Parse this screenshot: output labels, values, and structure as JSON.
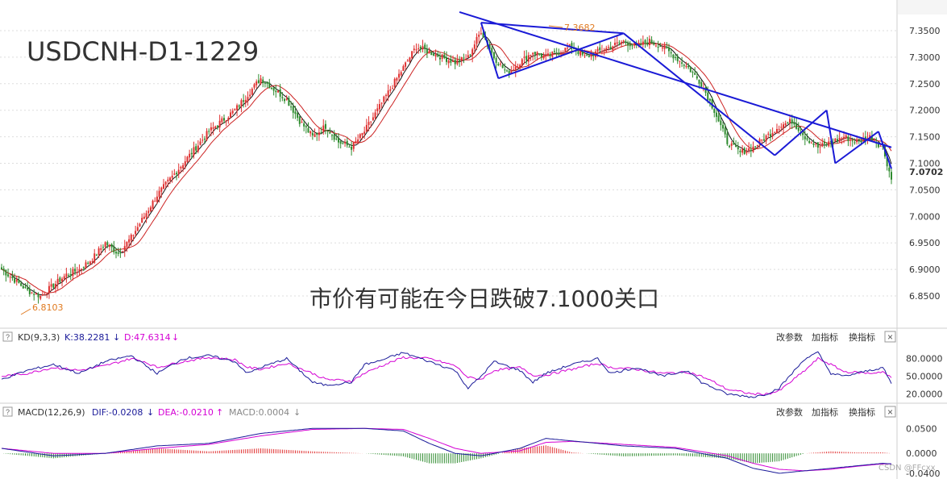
{
  "chart_data": [
    {
      "type": "candlestick",
      "title": "USDCNH-D1-1229",
      "annotation": "市价有可能在今日跌破7.1000关口",
      "price_high_label": "7.3682",
      "price_low_label": "6.8103",
      "last_price_label": "7.0702",
      "ylim": [
        6.81,
        7.37
      ],
      "y_ticks": [
        "7.3500",
        "7.3000",
        "7.2500",
        "7.2000",
        "7.1500",
        "7.1000",
        "7.0500",
        "7.0000",
        "6.9500",
        "6.9000",
        "6.8500"
      ],
      "y_tick_values": [
        7.35,
        7.3,
        7.25,
        7.2,
        7.15,
        7.1,
        7.05,
        7.0,
        6.95,
        6.9,
        6.85
      ],
      "close_path": [
        [
          0,
          6.9
        ],
        [
          6,
          6.88
        ],
        [
          12,
          6.86
        ],
        [
          18,
          6.85
        ],
        [
          24,
          6.87
        ],
        [
          30,
          6.89
        ],
        [
          36,
          6.9
        ],
        [
          42,
          6.92
        ],
        [
          48,
          6.95
        ],
        [
          54,
          6.93
        ],
        [
          60,
          6.96
        ],
        [
          66,
          7.0
        ],
        [
          72,
          7.04
        ],
        [
          78,
          7.07
        ],
        [
          84,
          7.1
        ],
        [
          90,
          7.13
        ],
        [
          96,
          7.16
        ],
        [
          102,
          7.18
        ],
        [
          108,
          7.2
        ],
        [
          114,
          7.23
        ],
        [
          120,
          7.26
        ],
        [
          126,
          7.24
        ],
        [
          132,
          7.22
        ],
        [
          138,
          7.18
        ],
        [
          144,
          7.15
        ],
        [
          150,
          7.17
        ],
        [
          156,
          7.14
        ],
        [
          162,
          7.13
        ],
        [
          168,
          7.16
        ],
        [
          174,
          7.2
        ],
        [
          180,
          7.24
        ],
        [
          186,
          7.28
        ],
        [
          192,
          7.32
        ],
        [
          198,
          7.31
        ],
        [
          204,
          7.3
        ],
        [
          210,
          7.29
        ],
        [
          216,
          7.3
        ],
        [
          222,
          7.35
        ],
        [
          228,
          7.3
        ],
        [
          234,
          7.27
        ],
        [
          240,
          7.29
        ],
        [
          246,
          7.31
        ],
        [
          252,
          7.3
        ],
        [
          258,
          7.31
        ],
        [
          264,
          7.32
        ],
        [
          270,
          7.3
        ],
        [
          276,
          7.31
        ],
        [
          282,
          7.32
        ],
        [
          288,
          7.33
        ],
        [
          294,
          7.32
        ],
        [
          300,
          7.33
        ],
        [
          306,
          7.32
        ],
        [
          312,
          7.3
        ],
        [
          318,
          7.28
        ],
        [
          324,
          7.25
        ],
        [
          330,
          7.2
        ],
        [
          336,
          7.14
        ],
        [
          342,
          7.12
        ],
        [
          348,
          7.13
        ],
        [
          354,
          7.15
        ],
        [
          360,
          7.17
        ],
        [
          366,
          7.18
        ],
        [
          372,
          7.15
        ],
        [
          378,
          7.13
        ],
        [
          384,
          7.14
        ],
        [
          390,
          7.15
        ],
        [
          396,
          7.14
        ],
        [
          402,
          7.15
        ],
        [
          408,
          7.13
        ],
        [
          412,
          7.07
        ]
      ],
      "trendlines": [
        {
          "from": [
            212,
            7.385
          ],
          "to": [
            412,
            7.13
          ]
        },
        {
          "from": [
            222,
            7.365
          ],
          "to": [
            230,
            7.26
          ]
        },
        {
          "from": [
            230,
            7.26
          ],
          "to": [
            288,
            7.345
          ]
        },
        {
          "from": [
            222,
            7.365
          ],
          "to": [
            288,
            7.345
          ]
        },
        {
          "from": [
            288,
            7.345
          ],
          "to": [
            358,
            7.115
          ]
        },
        {
          "from": [
            358,
            7.115
          ],
          "to": [
            382,
            7.2
          ]
        },
        {
          "from": [
            382,
            7.2
          ],
          "to": [
            386,
            7.1
          ]
        },
        {
          "from": [
            386,
            7.1
          ],
          "to": [
            406,
            7.16
          ]
        },
        {
          "from": [
            406,
            7.16
          ],
          "to": [
            412,
            7.09
          ]
        }
      ],
      "colors": {
        "up": "#e03030",
        "down": "#2e8b2e",
        "ma_short": "#111111",
        "ma_long": "#cc2222",
        "trendline": "#1a1ad6",
        "price_label": "#e07a20"
      }
    },
    {
      "type": "line",
      "title": "KD(9,3,3)",
      "legend": [
        {
          "name": "K",
          "value_label": "K:38.2281",
          "arrow": "↓",
          "color": "#1a1a99"
        },
        {
          "name": "D",
          "value_label": "D:47.6314",
          "arrow": "↓",
          "color": "#d400d4"
        }
      ],
      "y_ticks": [
        "80.0000",
        "50.0000",
        "20.0000"
      ],
      "y_tick_values": [
        80,
        50,
        20
      ],
      "ylim": [
        10,
        100
      ],
      "k_path": [
        [
          0,
          45
        ],
        [
          12,
          60
        ],
        [
          24,
          70
        ],
        [
          36,
          55
        ],
        [
          48,
          75
        ],
        [
          60,
          85
        ],
        [
          66,
          70
        ],
        [
          72,
          55
        ],
        [
          84,
          80
        ],
        [
          96,
          85
        ],
        [
          108,
          75
        ],
        [
          114,
          55
        ],
        [
          120,
          65
        ],
        [
          132,
          80
        ],
        [
          144,
          40
        ],
        [
          150,
          35
        ],
        [
          162,
          40
        ],
        [
          168,
          70
        ],
        [
          174,
          75
        ],
        [
          186,
          90
        ],
        [
          198,
          75
        ],
        [
          210,
          60
        ],
        [
          216,
          30
        ],
        [
          222,
          50
        ],
        [
          228,
          75
        ],
        [
          240,
          60
        ],
        [
          246,
          40
        ],
        [
          252,
          55
        ],
        [
          264,
          70
        ],
        [
          276,
          80
        ],
        [
          282,
          55
        ],
        [
          294,
          65
        ],
        [
          306,
          50
        ],
        [
          318,
          60
        ],
        [
          324,
          40
        ],
        [
          330,
          30
        ],
        [
          336,
          20
        ],
        [
          348,
          15
        ],
        [
          354,
          20
        ],
        [
          360,
          30
        ],
        [
          372,
          80
        ],
        [
          378,
          90
        ],
        [
          384,
          55
        ],
        [
          390,
          50
        ],
        [
          402,
          60
        ],
        [
          408,
          65
        ],
        [
          412,
          38
        ]
      ],
      "d_path": [
        [
          0,
          50
        ],
        [
          12,
          55
        ],
        [
          24,
          65
        ],
        [
          36,
          60
        ],
        [
          48,
          68
        ],
        [
          60,
          80
        ],
        [
          66,
          75
        ],
        [
          72,
          65
        ],
        [
          84,
          75
        ],
        [
          96,
          82
        ],
        [
          108,
          78
        ],
        [
          114,
          65
        ],
        [
          120,
          62
        ],
        [
          132,
          72
        ],
        [
          144,
          55
        ],
        [
          150,
          45
        ],
        [
          162,
          42
        ],
        [
          168,
          55
        ],
        [
          174,
          65
        ],
        [
          186,
          82
        ],
        [
          198,
          80
        ],
        [
          210,
          68
        ],
        [
          216,
          48
        ],
        [
          222,
          45
        ],
        [
          228,
          60
        ],
        [
          240,
          65
        ],
        [
          246,
          52
        ],
        [
          252,
          52
        ],
        [
          264,
          62
        ],
        [
          276,
          72
        ],
        [
          282,
          65
        ],
        [
          294,
          62
        ],
        [
          306,
          55
        ],
        [
          318,
          57
        ],
        [
          324,
          50
        ],
        [
          330,
          40
        ],
        [
          336,
          28
        ],
        [
          348,
          20
        ],
        [
          354,
          20
        ],
        [
          360,
          25
        ],
        [
          372,
          60
        ],
        [
          378,
          80
        ],
        [
          384,
          70
        ],
        [
          390,
          58
        ],
        [
          402,
          55
        ],
        [
          408,
          58
        ],
        [
          412,
          47
        ]
      ]
    },
    {
      "type": "bar",
      "title": "MACD(12,26,9)",
      "legend": [
        {
          "name": "DIF",
          "value_label": "DIF:-0.0208",
          "arrow": "↓",
          "color": "#1a1a99"
        },
        {
          "name": "DEA",
          "value_label": "DEA:-0.0210",
          "arrow": "↑",
          "color": "#d400d4"
        },
        {
          "name": "MACD",
          "value_label": "MACD:0.0004",
          "arrow": "↓",
          "color": "#888888"
        }
      ],
      "y_ticks": [
        "0.0500",
        "0.0000",
        "-0.0400"
      ],
      "y_tick_values": [
        0.05,
        0.0,
        -0.04
      ],
      "ylim": [
        -0.045,
        0.065
      ],
      "dif_path": [
        [
          0,
          0.01
        ],
        [
          24,
          -0.005
        ],
        [
          48,
          0.0
        ],
        [
          72,
          0.015
        ],
        [
          96,
          0.02
        ],
        [
          120,
          0.04
        ],
        [
          144,
          0.05
        ],
        [
          168,
          0.05
        ],
        [
          186,
          0.045
        ],
        [
          198,
          0.02
        ],
        [
          210,
          0.0
        ],
        [
          222,
          -0.005
        ],
        [
          240,
          0.01
        ],
        [
          252,
          0.03
        ],
        [
          264,
          0.025
        ],
        [
          288,
          0.015
        ],
        [
          312,
          0.01
        ],
        [
          336,
          -0.01
        ],
        [
          348,
          -0.03
        ],
        [
          360,
          -0.04
        ],
        [
          372,
          -0.035
        ],
        [
          384,
          -0.03
        ],
        [
          396,
          -0.025
        ],
        [
          408,
          -0.02
        ],
        [
          412,
          -0.021
        ]
      ],
      "dea_path": [
        [
          0,
          0.01
        ],
        [
          24,
          0.0
        ],
        [
          48,
          0.0
        ],
        [
          72,
          0.01
        ],
        [
          96,
          0.018
        ],
        [
          120,
          0.035
        ],
        [
          144,
          0.048
        ],
        [
          168,
          0.05
        ],
        [
          186,
          0.048
        ],
        [
          198,
          0.03
        ],
        [
          210,
          0.01
        ],
        [
          222,
          0.0
        ],
        [
          240,
          0.005
        ],
        [
          252,
          0.022
        ],
        [
          264,
          0.024
        ],
        [
          288,
          0.018
        ],
        [
          312,
          0.012
        ],
        [
          336,
          -0.005
        ],
        [
          348,
          -0.02
        ],
        [
          360,
          -0.032
        ],
        [
          372,
          -0.035
        ],
        [
          384,
          -0.032
        ],
        [
          396,
          -0.026
        ],
        [
          408,
          -0.021
        ],
        [
          412,
          -0.021
        ]
      ],
      "hist_up": "#e03030",
      "hist_down": "#2e8b2e"
    }
  ],
  "toolbar": {
    "change_params": "改参数",
    "add_indicator": "加指标",
    "switch_indicator": "换指标",
    "close": "×",
    "help": "?"
  },
  "watermark": "CSDN @FFcxx"
}
